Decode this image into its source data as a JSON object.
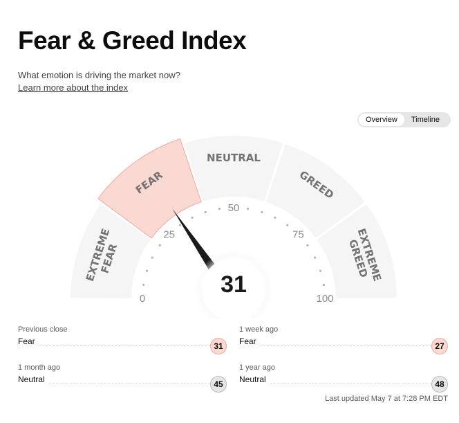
{
  "header": {
    "title": "Fear & Greed Index",
    "subtitle": "What emotion is driving the market now?",
    "learn_more": "Learn more about the index"
  },
  "view_toggle": {
    "overview": "Overview",
    "timeline": "Timeline",
    "active": "Overview"
  },
  "gauge": {
    "value": 31,
    "segments": [
      {
        "label_lines": [
          "EXTREME",
          "FEAR"
        ],
        "active": false
      },
      {
        "label_lines": [
          "FEAR"
        ],
        "active": true
      },
      {
        "label_lines": [
          "NEUTRAL"
        ],
        "active": false
      },
      {
        "label_lines": [
          "GREED"
        ],
        "active": false
      },
      {
        "label_lines": [
          "EXTREME",
          "GREED"
        ],
        "active": false
      }
    ],
    "ticks": [
      "0",
      "25",
      "50",
      "75",
      "100"
    ],
    "colors": {
      "segment": "#f5f5f5",
      "segment_active": "#fbd9d3",
      "segment_active_stroke": "#f0a99c",
      "needle": "#1a1a1a",
      "label": "#737373"
    }
  },
  "stats": {
    "previous_close": {
      "label": "Previous close",
      "rating": "Fear",
      "value": "31"
    },
    "one_week": {
      "label": "1 week ago",
      "rating": "Fear",
      "value": "27"
    },
    "one_month": {
      "label": "1 month ago",
      "rating": "Neutral",
      "value": "45"
    },
    "one_year": {
      "label": "1 year ago",
      "rating": "Neutral",
      "value": "48"
    }
  },
  "last_updated": "Last updated May 7 at 7:28 PM EDT"
}
